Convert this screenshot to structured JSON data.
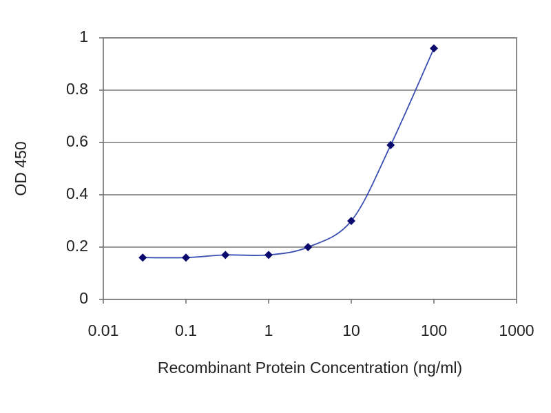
{
  "chart_data": {
    "type": "line",
    "x_label": "Recombinant Protein Concentration (ng/ml)",
    "y_label": "OD 450",
    "x": [
      0.03,
      0.1,
      0.3,
      1,
      3,
      10,
      30,
      100
    ],
    "values": [
      0.16,
      0.16,
      0.17,
      0.17,
      0.2,
      0.3,
      0.59,
      0.96
    ],
    "color": "#3a4fb0",
    "marker_color": "#0a0a6e",
    "xscale": "log",
    "xlim": [
      0.01,
      1000
    ],
    "xticks": [
      0.01,
      0.1,
      1,
      10,
      100,
      1000
    ],
    "ylim": [
      0,
      1
    ],
    "yticks": [
      0,
      0.2,
      0.4,
      0.6,
      0.8,
      1
    ],
    "grid": true
  }
}
